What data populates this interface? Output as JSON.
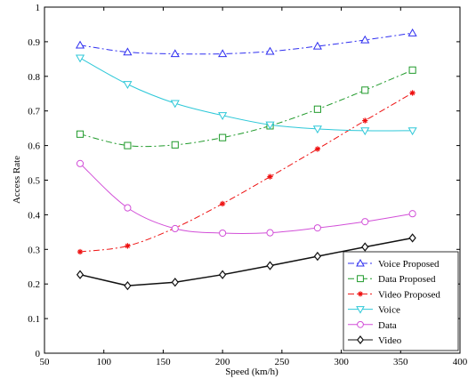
{
  "chart_data": {
    "type": "line",
    "xlabel": "Speed (km/h)",
    "ylabel": "Access Rate",
    "xlim": [
      50,
      400
    ],
    "ylim": [
      0,
      1
    ],
    "xticks": [
      50,
      100,
      150,
      200,
      250,
      300,
      350,
      400
    ],
    "yticks": [
      0,
      0.1,
      0.2,
      0.3,
      0.4,
      0.5,
      0.6,
      0.7,
      0.8,
      0.9,
      1
    ],
    "grid": false,
    "legend_position": "bottom-right",
    "x": [
      80,
      120,
      160,
      200,
      240,
      280,
      320,
      360
    ],
    "series": [
      {
        "name": "Voice Proposed",
        "values": [
          0.89,
          0.87,
          0.865,
          0.865,
          0.872,
          0.887,
          0.905,
          0.925
        ],
        "color": "#2f2ff0",
        "dash": "dashdot",
        "marker": "triangle-up"
      },
      {
        "name": "Data Proposed",
        "values": [
          0.633,
          0.6,
          0.602,
          0.623,
          0.657,
          0.705,
          0.76,
          0.818
        ],
        "color": "#1f9a2a",
        "dash": "dashdot",
        "marker": "square"
      },
      {
        "name": "Video Proposed",
        "values": [
          0.293,
          0.31,
          0.362,
          0.432,
          0.51,
          0.59,
          0.672,
          0.752
        ],
        "color": "#ee1111",
        "dash": "dashdot",
        "marker": "asterisk"
      },
      {
        "name": "Voice",
        "values": [
          0.853,
          0.777,
          0.722,
          0.687,
          0.66,
          0.648,
          0.643,
          0.643
        ],
        "color": "#2ec8d8",
        "dash": "solid",
        "marker": "triangle-down"
      },
      {
        "name": "Data",
        "values": [
          0.548,
          0.42,
          0.36,
          0.347,
          0.348,
          0.362,
          0.38,
          0.403
        ],
        "color": "#d24fd8",
        "dash": "solid",
        "marker": "circle"
      },
      {
        "name": "Video",
        "values": [
          0.227,
          0.195,
          0.205,
          0.227,
          0.253,
          0.28,
          0.307,
          0.333
        ],
        "color": "#111111",
        "dash": "solid",
        "marker": "diamond"
      }
    ]
  }
}
